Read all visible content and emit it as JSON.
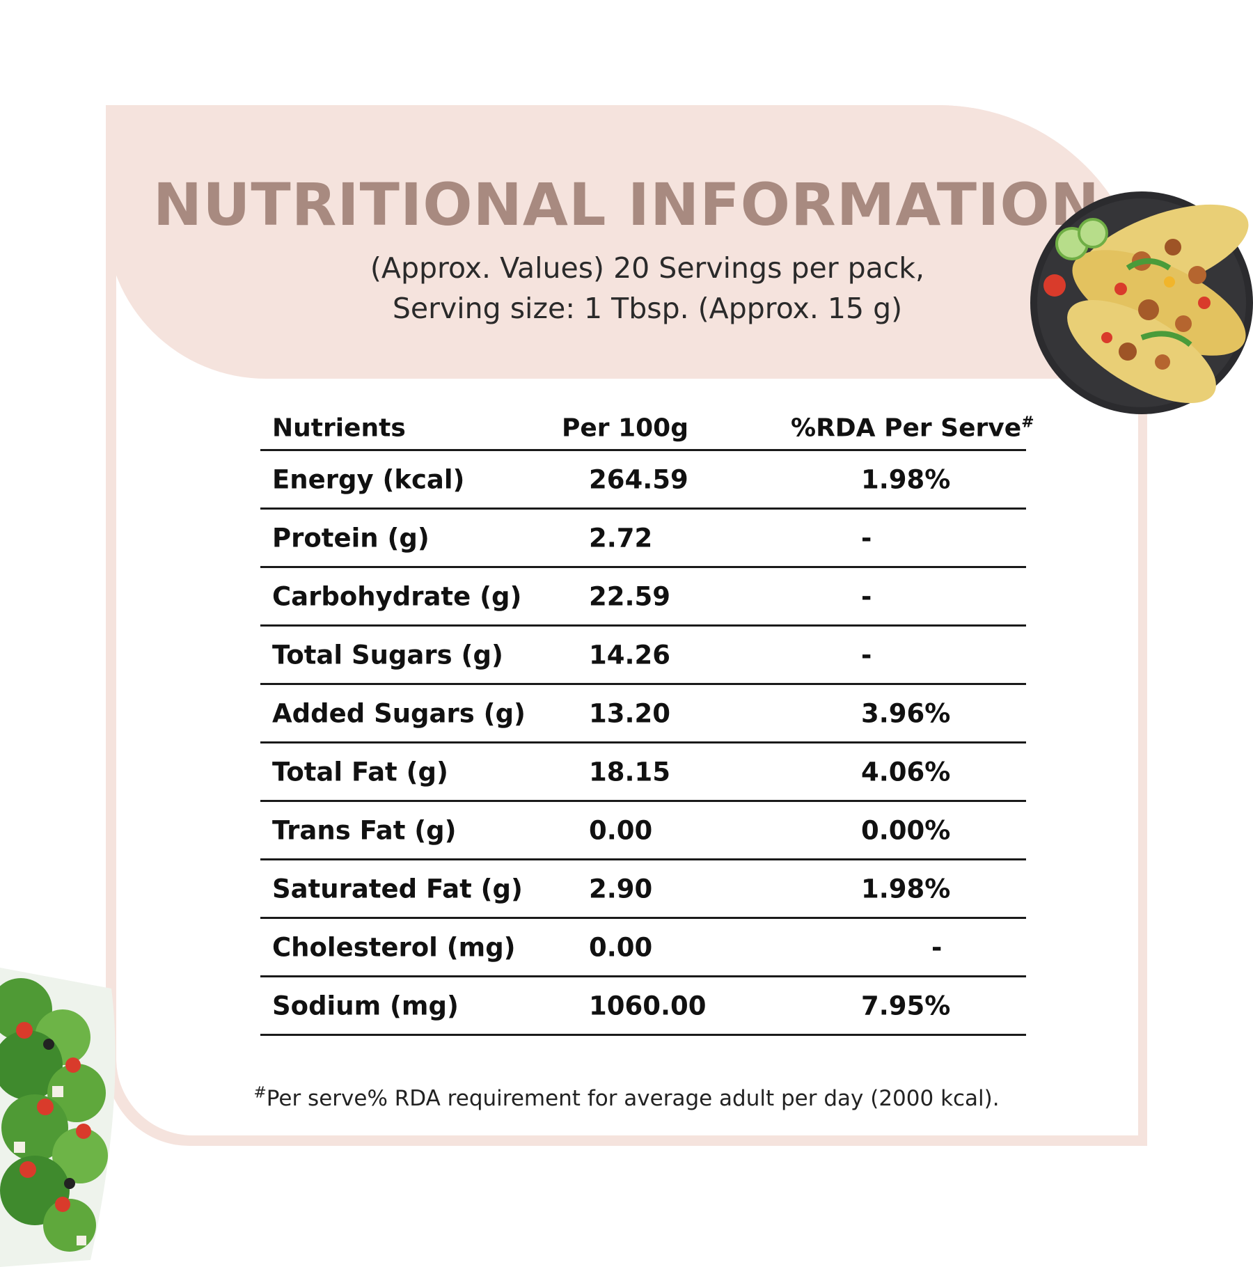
{
  "header": {
    "title": "NUTRITIONAL INFORMATION",
    "subtitle_line1": "(Approx. Values) 20 Servings per pack,",
    "subtitle_line2": "Serving size: 1 Tbsp. (Approx. 15 g)"
  },
  "table": {
    "columns": [
      "Nutrients",
      "Per 100g",
      "%RDA Per Serve"
    ],
    "rda_marker": "#",
    "rows": [
      {
        "nutrient": "Energy (kcal)",
        "per100g": "264.59",
        "rda": "1.98%"
      },
      {
        "nutrient": "Protein (g)",
        "per100g": "2.72",
        "rda": "-"
      },
      {
        "nutrient": "Carbohydrate (g)",
        "per100g": "22.59",
        "rda": "-"
      },
      {
        "nutrient": "Total Sugars (g)",
        "per100g": "14.26",
        "rda": "-"
      },
      {
        "nutrient": "Added Sugars (g)",
        "per100g": "13.20",
        "rda": "3.96%"
      },
      {
        "nutrient": "Total Fat (g)",
        "per100g": "18.15",
        "rda": "4.06%"
      },
      {
        "nutrient": "Trans Fat (g)",
        "per100g": "0.00",
        "rda": "0.00%"
      },
      {
        "nutrient": "Saturated Fat (g)",
        "per100g": "2.90",
        "rda": "1.98%"
      },
      {
        "nutrient": "Cholesterol (mg)",
        "per100g": "0.00",
        "rda": "-"
      },
      {
        "nutrient": "Sodium (mg)",
        "per100g": "1060.00",
        "rda": "7.95%"
      }
    ]
  },
  "footnote": {
    "marker": "#",
    "text": "Per serve% RDA requirement for average adult per day (2000 kcal)."
  },
  "colors": {
    "accent_pink": "#f5e3dd",
    "title_brown": "#a88a80",
    "text_dark": "#111111"
  },
  "images": {
    "top_right": "taco-plate-photo",
    "bottom_left": "salad-bowl-photo"
  }
}
